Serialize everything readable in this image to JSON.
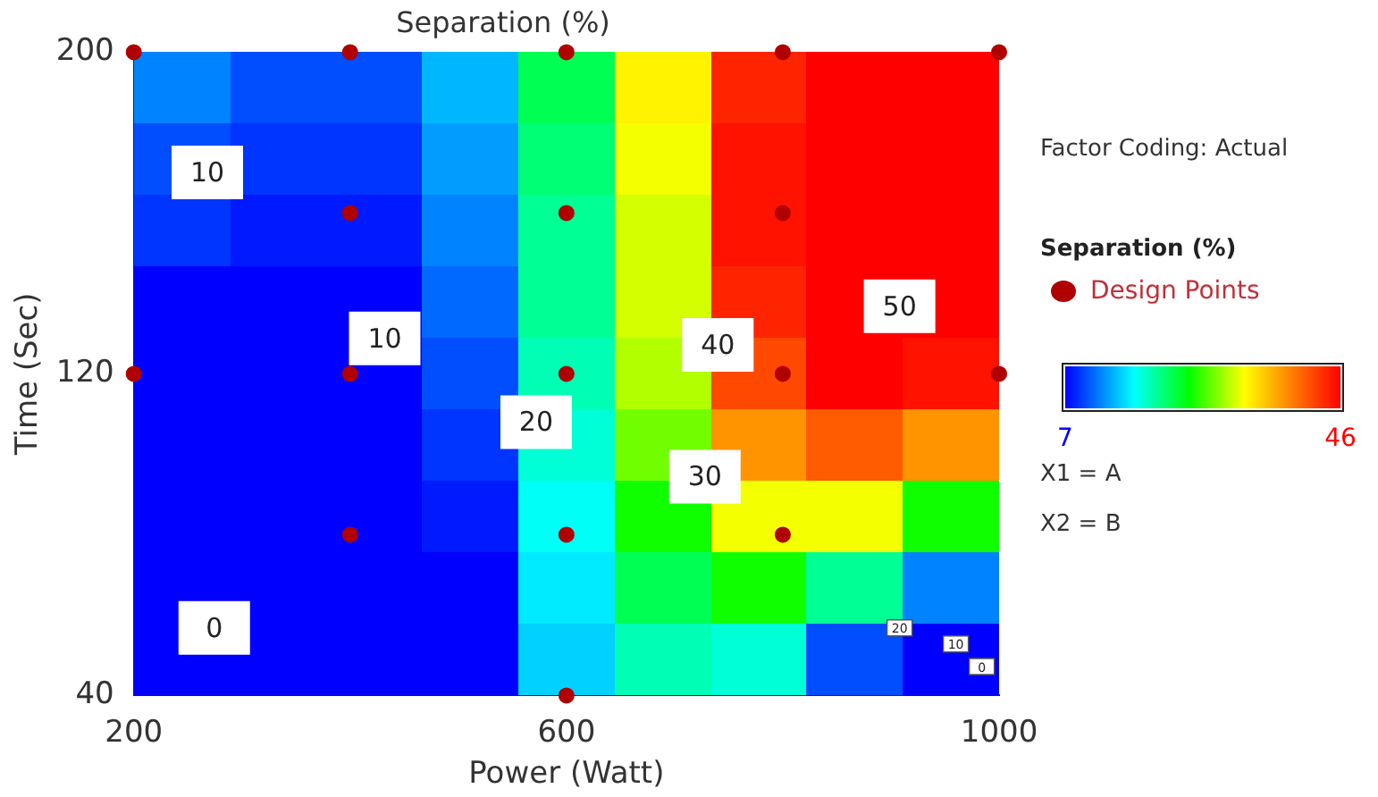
{
  "chart_data": {
    "type": "heatmap",
    "title": "Separation (%)",
    "xlabel": "Power (Watt)",
    "ylabel": "Time (Sec)",
    "legend_title": "Separation (%)",
    "cells": [
      [
        12,
        10,
        10,
        14,
        22,
        33,
        44,
        46,
        46
      ],
      [
        10,
        9,
        9,
        13,
        21,
        32,
        45,
        46,
        46
      ],
      [
        9,
        8,
        8,
        12,
        20,
        31,
        45,
        46,
        46
      ],
      [
        7,
        7,
        7,
        11,
        20,
        31,
        44,
        46,
        46
      ],
      [
        7,
        7,
        7,
        10,
        19,
        30,
        42,
        46,
        45
      ],
      [
        7,
        7,
        7,
        9,
        18,
        28,
        38,
        41,
        38
      ],
      [
        7,
        7,
        7,
        8,
        17,
        25,
        32,
        32,
        25
      ],
      [
        7,
        7,
        7,
        7,
        16,
        22,
        25,
        20,
        12
      ],
      [
        7,
        7,
        7,
        7,
        15,
        19,
        18,
        10,
        7
      ]
    ],
    "clim": [
      7,
      46
    ],
    "cticks": [
      7,
      46
    ],
    "xlim": [
      200,
      1000
    ],
    "xticks": [
      200,
      600,
      1000
    ],
    "ylim": [
      40,
      200
    ],
    "yticks": [
      40,
      120,
      200
    ],
    "series": [
      {
        "name": "Design Points",
        "type": "scatter",
        "color": "#b00000",
        "x": [
          200,
          400,
          600,
          800,
          1000,
          400,
          600,
          800,
          200,
          400,
          600,
          800,
          1000,
          400,
          600,
          800,
          600
        ],
        "values": [
          200,
          200,
          200,
          200,
          200,
          160,
          160,
          160,
          120,
          120,
          120,
          120,
          120,
          80,
          80,
          80,
          40
        ]
      }
    ],
    "marker": "circle",
    "grid": false,
    "legend": "right",
    "annotations": [
      "10",
      "10",
      "20",
      "30",
      "40",
      "50",
      "0",
      "20",
      "10",
      "0",
      "Factor Coding: Actual",
      "X1 = A",
      "X2 = B"
    ]
  }
}
